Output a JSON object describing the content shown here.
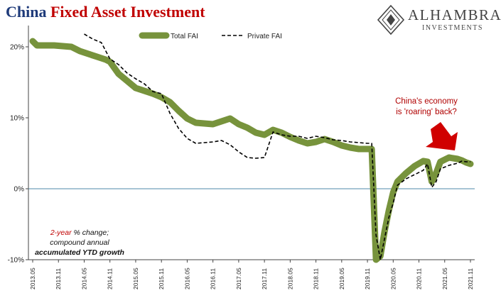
{
  "header": {
    "title_part1": "China",
    "title_part2": "Fixed Asset Investment"
  },
  "logo": {
    "brand": "ALHAMBRA",
    "sub": "INVESTMENTS"
  },
  "annotations": {
    "callout_line1": "China's economy",
    "callout_line2": "is 'roaring' back?",
    "note_red": "2-year",
    "note_line1_rest": " % change;",
    "note_line2": "compound annual",
    "note_line3": "accumulated YTD growth"
  },
  "colors": {
    "total_fai": "#77933c",
    "private_fai": "#000000",
    "zero_line": "#4f8aa8",
    "arrow": "#d00000"
  },
  "chart_data": {
    "type": "line",
    "title": "China Fixed Asset Investment",
    "ylim": [
      -10,
      23
    ],
    "yticks": [
      {
        "v": 20,
        "label": "20%"
      },
      {
        "v": 10,
        "label": "10%"
      },
      {
        "v": 0,
        "label": "0%"
      },
      {
        "v": -10,
        "label": "-10%"
      }
    ],
    "x_start": "2013.05",
    "x_end": "2021.11",
    "xtick_labels": [
      "2013.05",
      "2013.11",
      "2014.05",
      "2014.11",
      "2015.05",
      "2015.11",
      "2016.05",
      "2016.11",
      "2017.05",
      "2017.11",
      "2018.05",
      "2018.11",
      "2019.05",
      "2019.11",
      "2020.05",
      "2020.11",
      "2021.05",
      "2021.11"
    ],
    "legend_placement": "top-center",
    "series": [
      {
        "name": "Total FAI",
        "style": "thick-solid",
        "points": [
          [
            "2013.05",
            20.8
          ],
          [
            "2013.06",
            20.2
          ],
          [
            "2013.08",
            20.2
          ],
          [
            "2013.10",
            20.2
          ],
          [
            "2013.12",
            20.1
          ],
          [
            "2014.02",
            20.0
          ],
          [
            "2014.04",
            19.4
          ],
          [
            "2014.06",
            19.0
          ],
          [
            "2014.08",
            18.6
          ],
          [
            "2014.10",
            18.2
          ],
          [
            "2014.11",
            17.9
          ],
          [
            "2015.01",
            16.2
          ],
          [
            "2015.03",
            15.2
          ],
          [
            "2015.05",
            14.2
          ],
          [
            "2015.07",
            13.8
          ],
          [
            "2015.09",
            13.4
          ],
          [
            "2015.11",
            12.9
          ],
          [
            "2016.01",
            12.2
          ],
          [
            "2016.03",
            11.0
          ],
          [
            "2016.05",
            9.9
          ],
          [
            "2016.07",
            9.3
          ],
          [
            "2016.09",
            9.2
          ],
          [
            "2016.11",
            9.1
          ],
          [
            "2017.01",
            9.5
          ],
          [
            "2017.03",
            9.9
          ],
          [
            "2017.05",
            9.1
          ],
          [
            "2017.07",
            8.6
          ],
          [
            "2017.09",
            7.9
          ],
          [
            "2017.11",
            7.6
          ],
          [
            "2018.01",
            8.3
          ],
          [
            "2018.03",
            7.9
          ],
          [
            "2018.05",
            7.3
          ],
          [
            "2018.07",
            6.8
          ],
          [
            "2018.09",
            6.4
          ],
          [
            "2018.11",
            6.6
          ],
          [
            "2019.01",
            7.0
          ],
          [
            "2019.03",
            6.6
          ],
          [
            "2019.05",
            6.1
          ],
          [
            "2019.07",
            5.8
          ],
          [
            "2019.09",
            5.6
          ],
          [
            "2019.11",
            5.6
          ],
          [
            "2019.12",
            5.6
          ],
          [
            "2020.01",
            -10.0
          ],
          [
            "2020.02",
            -9.5
          ],
          [
            "2020.03",
            -6.0
          ],
          [
            "2020.04",
            -3.0
          ],
          [
            "2020.05",
            -0.5
          ],
          [
            "2020.06",
            1.0
          ],
          [
            "2020.08",
            2.2
          ],
          [
            "2020.10",
            3.2
          ],
          [
            "2020.12",
            3.9
          ],
          [
            "2021.01",
            3.8
          ],
          [
            "2021.02",
            1.0
          ],
          [
            "2021.03",
            2.2
          ],
          [
            "2021.04",
            3.8
          ],
          [
            "2021.06",
            4.4
          ],
          [
            "2021.08",
            4.2
          ],
          [
            "2021.09",
            4.0
          ],
          [
            "2021.10",
            3.7
          ],
          [
            "2021.11",
            3.5
          ]
        ]
      },
      {
        "name": "Private FAI",
        "style": "dashed",
        "points": [
          [
            "2014.05",
            21.8
          ],
          [
            "2014.07",
            21.1
          ],
          [
            "2014.09",
            20.6
          ],
          [
            "2014.11",
            18.3
          ],
          [
            "2015.01",
            17.5
          ],
          [
            "2015.03",
            16.3
          ],
          [
            "2015.05",
            15.5
          ],
          [
            "2015.07",
            14.8
          ],
          [
            "2015.09",
            13.7
          ],
          [
            "2015.11",
            13.4
          ],
          [
            "2016.01",
            10.6
          ],
          [
            "2016.03",
            8.5
          ],
          [
            "2016.05",
            7.1
          ],
          [
            "2016.07",
            6.4
          ],
          [
            "2016.09",
            6.5
          ],
          [
            "2016.11",
            6.6
          ],
          [
            "2017.01",
            6.8
          ],
          [
            "2017.03",
            6.2
          ],
          [
            "2017.05",
            5.2
          ],
          [
            "2017.07",
            4.4
          ],
          [
            "2017.09",
            4.3
          ],
          [
            "2017.11",
            4.4
          ],
          [
            "2018.01",
            8.0
          ],
          [
            "2018.03",
            7.6
          ],
          [
            "2018.05",
            7.4
          ],
          [
            "2018.07",
            7.4
          ],
          [
            "2018.09",
            7.1
          ],
          [
            "2018.11",
            7.4
          ],
          [
            "2019.01",
            7.2
          ],
          [
            "2019.03",
            6.9
          ],
          [
            "2019.05",
            6.8
          ],
          [
            "2019.07",
            6.6
          ],
          [
            "2019.09",
            6.5
          ],
          [
            "2019.11",
            6.4
          ],
          [
            "2019.12",
            6.4
          ],
          [
            "2020.01",
            -6.5
          ],
          [
            "2020.02",
            -10.0
          ],
          [
            "2020.03",
            -7.0
          ],
          [
            "2020.04",
            -4.0
          ],
          [
            "2020.05",
            -2.0
          ],
          [
            "2020.06",
            0.5
          ],
          [
            "2020.08",
            1.4
          ],
          [
            "2020.10",
            2.0
          ],
          [
            "2020.12",
            2.6
          ],
          [
            "2021.01",
            3.5
          ],
          [
            "2021.02",
            0.2
          ],
          [
            "2021.03",
            1.0
          ],
          [
            "2021.04",
            2.8
          ],
          [
            "2021.06",
            3.3
          ],
          [
            "2021.08",
            3.6
          ],
          [
            "2021.09",
            3.9
          ],
          [
            "2021.10",
            3.8
          ],
          [
            "2021.11",
            3.8
          ]
        ]
      }
    ]
  }
}
